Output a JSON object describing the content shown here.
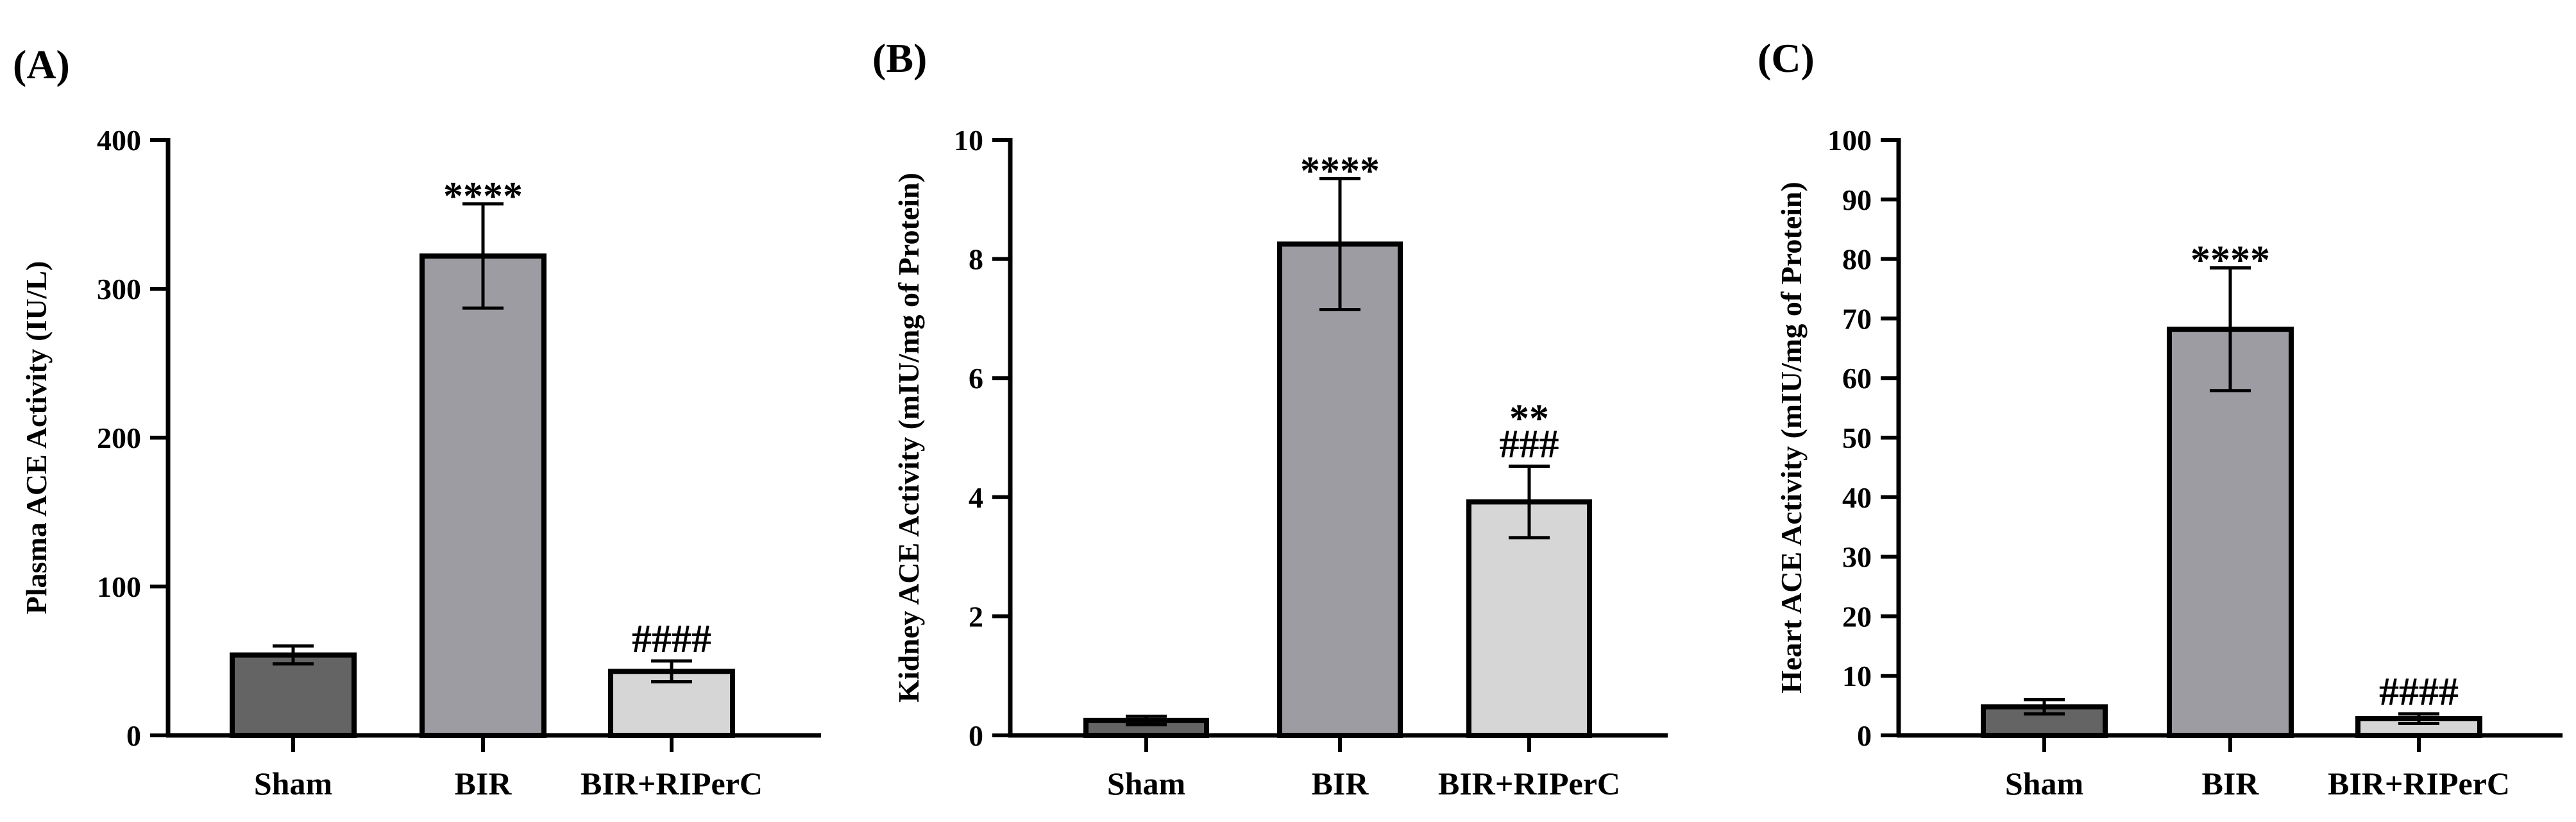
{
  "chart_data": [
    {
      "type": "bar",
      "panel": "(A)",
      "ylabel": "Plasma ACE Activity (IU/L)",
      "xlabel": "",
      "categories": [
        "Sham",
        "BIR",
        "BIR+RIPerC"
      ],
      "values": [
        54,
        322,
        43
      ],
      "errors": [
        6,
        35,
        7
      ],
      "annotations": [
        "",
        "****",
        "####"
      ],
      "ylim": [
        0,
        400
      ],
      "yticks": [
        0,
        100,
        200,
        300,
        400
      ],
      "bar_colors": [
        "#646464",
        "#9d9ca2",
        "#d6d6d6"
      ]
    },
    {
      "type": "bar",
      "panel": "(B)",
      "ylabel": "Kidney ACE Activity (mIU/mg of Protein)",
      "xlabel": "",
      "categories": [
        "Sham",
        "BIR",
        "BIR+RIPerC"
      ],
      "values": [
        0.25,
        8.25,
        3.92
      ],
      "errors": [
        0.07,
        1.1,
        0.6
      ],
      "annotations": [
        "",
        "****",
        "**|###"
      ],
      "ylim": [
        0,
        10
      ],
      "yticks": [
        0,
        2,
        4,
        6,
        8,
        10
      ],
      "bar_colors": [
        "#646464",
        "#9d9ca2",
        "#d6d6d6"
      ]
    },
    {
      "type": "bar",
      "panel": "(C)",
      "ylabel": "Heart ACE Activity (mIU/mg of Protein)",
      "xlabel": "",
      "categories": [
        "Sham",
        "BIR",
        "BIR+RIPerC"
      ],
      "values": [
        4.8,
        68.2,
        2.8
      ],
      "errors": [
        1.2,
        10.3,
        0.8
      ],
      "annotations": [
        "",
        "****",
        "####"
      ],
      "ylim": [
        0,
        100
      ],
      "yticks": [
        0,
        10,
        20,
        30,
        40,
        50,
        60,
        70,
        80,
        90,
        100
      ],
      "bar_colors": [
        "#646464",
        "#9d9ca2",
        "#d6d6d6"
      ]
    }
  ]
}
